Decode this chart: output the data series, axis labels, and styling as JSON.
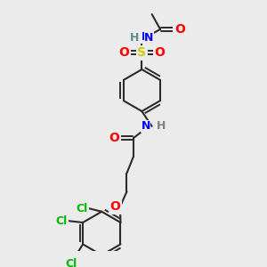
{
  "background_color": "#ebebeb",
  "bond_color": "#2b2b2b",
  "atom_colors": {
    "N_top": "#5b8f8f",
    "N": "#0000ff",
    "O": "#ff0000",
    "S": "#cccc00",
    "Cl": "#00bb00",
    "C": "#2b2b2b",
    "H": "#808080"
  },
  "figsize": [
    3.0,
    3.0
  ],
  "dpi": 100
}
